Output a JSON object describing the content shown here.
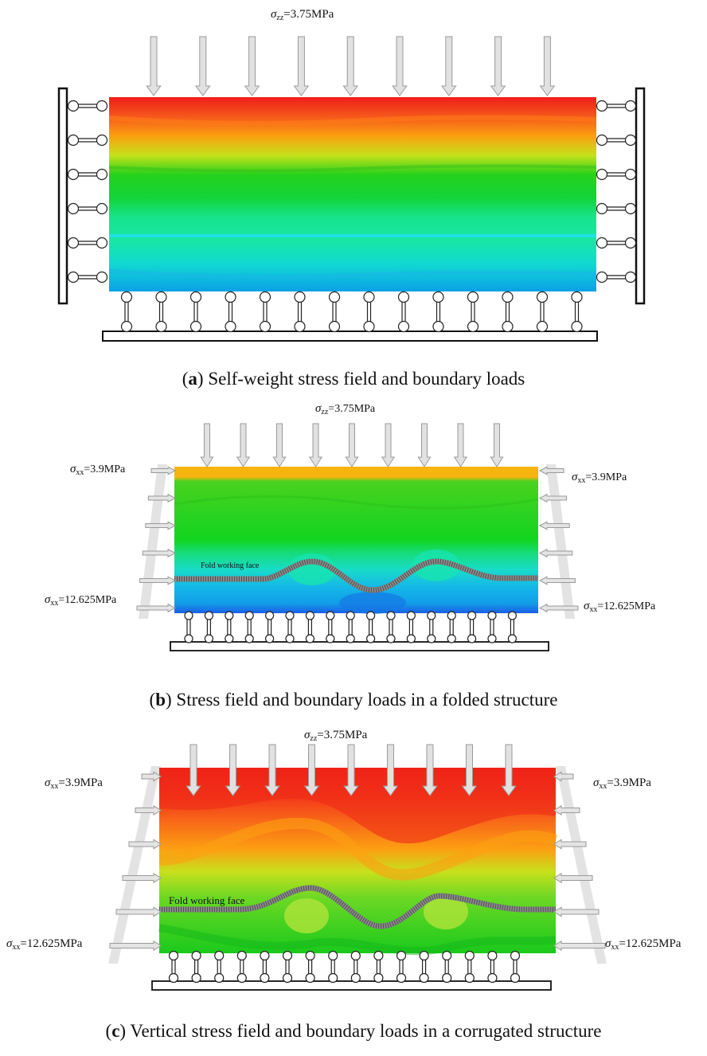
{
  "panels": [
    {
      "id": "a",
      "letter": "a",
      "caption": "Self-weight stress field and boundary loads",
      "top_load": {
        "sym": "σ",
        "sub": "zz",
        "value": "=3.75MPa"
      },
      "colors": {
        "top": "#ef1d1a",
        "bottom": "#0aa0e6"
      }
    },
    {
      "id": "b",
      "letter": "b",
      "caption": "Stress field and boundary loads in a folded structure",
      "top_load": {
        "sym": "σ",
        "sub": "zz",
        "value": "=3.75MPa"
      },
      "side_top": {
        "sym": "σ",
        "sub": "xx",
        "value": "=3.9MPa"
      },
      "side_bottom": {
        "sym": "σ",
        "sub": "xx",
        "value": "=12.625MPa"
      },
      "fold_label": "Fold working face"
    },
    {
      "id": "c",
      "letter": "c",
      "caption": "Vertical stress field and boundary loads in a corrugated structure",
      "top_load": {
        "sym": "σ",
        "sub": "zz",
        "value": "=3.75MPa"
      },
      "side_top": {
        "sym": "σ",
        "sub": "xx",
        "value": "=3.9MPa"
      },
      "side_bottom": {
        "sym": "σ",
        "sub": "xx",
        "value": "=12.625MPa"
      },
      "fold_label": "Fold working face"
    }
  ]
}
